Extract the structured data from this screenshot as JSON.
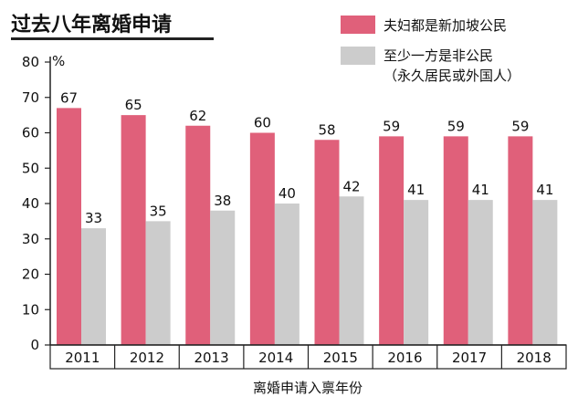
{
  "chart_data": {
    "type": "bar",
    "title": "过去八年离婚申请",
    "ylabel": "%",
    "xlabel": "离婚申请入禀年份",
    "ylim": [
      0,
      80
    ],
    "yticks": [
      0,
      10,
      20,
      30,
      40,
      50,
      60,
      70,
      80
    ],
    "categories": [
      "2011",
      "2012",
      "2013",
      "2014",
      "2015",
      "2016",
      "2017",
      "2018"
    ],
    "series": [
      {
        "name": "夫妇都是新加坡公民",
        "color": "#e0607a",
        "values": [
          67,
          65,
          62,
          60,
          58,
          59,
          59,
          59
        ]
      },
      {
        "name": "至少一方是非公民",
        "name_line2": "（永久居民或外国人）",
        "color": "#cccccc",
        "values": [
          33,
          35,
          38,
          40,
          42,
          41,
          41,
          41
        ]
      }
    ],
    "legend": "top-right",
    "grid": false
  }
}
